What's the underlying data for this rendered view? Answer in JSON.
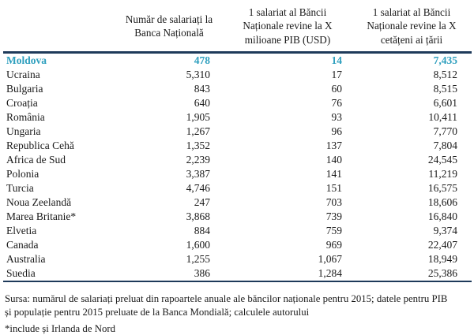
{
  "chart_data": {
    "type": "table",
    "columns": [
      "",
      "Număr de salariați la Banca Națională",
      "1 salariat al Băncii Naționale revine la X milioane PIB (USD)",
      "1 salariat al Băncii Naționale revine la X cetățeni ai țării"
    ],
    "rows": [
      {
        "country": "Moldova",
        "employees": "478",
        "pib": "14",
        "citizens": "7,435",
        "highlight": true
      },
      {
        "country": "Ucraina",
        "employees": "5,310",
        "pib": "17",
        "citizens": "8,512",
        "highlight": false
      },
      {
        "country": "Bulgaria",
        "employees": "843",
        "pib": "60",
        "citizens": "8,515",
        "highlight": false
      },
      {
        "country": "Croația",
        "employees": "640",
        "pib": "76",
        "citizens": "6,601",
        "highlight": false
      },
      {
        "country": "România",
        "employees": "1,905",
        "pib": "93",
        "citizens": "10,411",
        "highlight": false
      },
      {
        "country": "Ungaria",
        "employees": "1,267",
        "pib": "96",
        "citizens": "7,770",
        "highlight": false
      },
      {
        "country": "Republica Cehă",
        "employees": "1,352",
        "pib": "137",
        "citizens": "7,804",
        "highlight": false
      },
      {
        "country": "Africa de Sud",
        "employees": "2,239",
        "pib": "140",
        "citizens": "24,545",
        "highlight": false
      },
      {
        "country": "Polonia",
        "employees": "3,387",
        "pib": "141",
        "citizens": "11,219",
        "highlight": false
      },
      {
        "country": "Turcia",
        "employees": "4,746",
        "pib": "151",
        "citizens": "16,575",
        "highlight": false
      },
      {
        "country": "Noua Zeelandă",
        "employees": "247",
        "pib": "703",
        "citizens": "18,606",
        "highlight": false
      },
      {
        "country": "Marea Britanie*",
        "employees": "3,868",
        "pib": "739",
        "citizens": "16,840",
        "highlight": false
      },
      {
        "country": "Elvetia",
        "employees": "884",
        "pib": "759",
        "citizens": "9,374",
        "highlight": false
      },
      {
        "country": "Canada",
        "employees": "1,600",
        "pib": "969",
        "citizens": "22,407",
        "highlight": false
      },
      {
        "country": "Australia",
        "employees": "1,255",
        "pib": "1,067",
        "citizens": "18,949",
        "highlight": false
      },
      {
        "country": "Suedia",
        "employees": "386",
        "pib": "1,284",
        "citizens": "25,386",
        "highlight": false
      }
    ]
  },
  "footer": {
    "source_lines": [
      "Sursa: numărul de salariați preluat din rapoartele anuale ale băncilor naționale pentru 2015; datele pentru PIB",
      "și populație pentru 2015 preluate de la Banca Mondială; calculele autorului"
    ],
    "footnote": "*include și Irlanda de Nord"
  },
  "colors": {
    "highlight_teal": "#2e9fbe",
    "rule_navy": "#1e3a5a",
    "text": "#1a1a1a",
    "background": "#ffffff"
  }
}
